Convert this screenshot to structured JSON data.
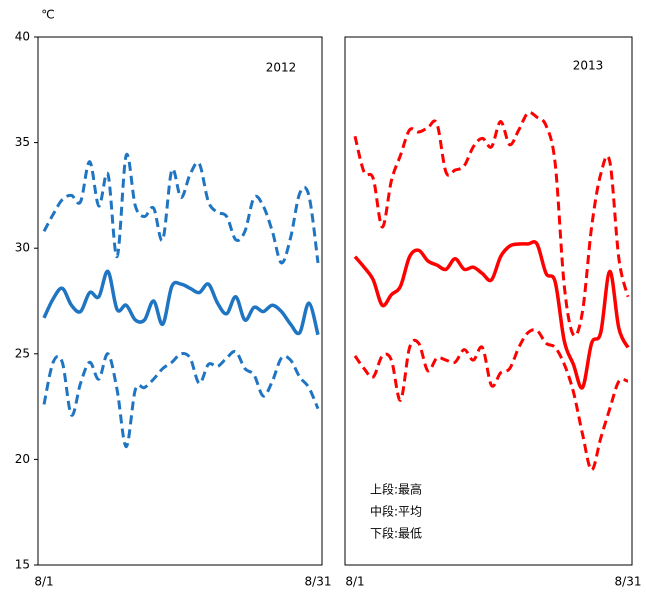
{
  "chart_data": [
    {
      "type": "line",
      "title": "2012",
      "y_label": "℃",
      "categories": [
        "8/1",
        null,
        null,
        null,
        null,
        null,
        null,
        null,
        null,
        null,
        null,
        null,
        null,
        null,
        null,
        null,
        null,
        null,
        null,
        null,
        null,
        null,
        null,
        null,
        null,
        null,
        null,
        null,
        null,
        null,
        "8/31"
      ],
      "ylim": [
        15,
        40
      ],
      "yticks": [
        15,
        20,
        25,
        30,
        35,
        40
      ],
      "series": [
        {
          "color": "#1f75c2",
          "dashed": true,
          "values": [
            30.8,
            31.6,
            32.3,
            32.5,
            32.2,
            34.1,
            32.0,
            33.5,
            29.6,
            34.4,
            32.0,
            31.5,
            31.9,
            30.4,
            33.7,
            32.4,
            33.5,
            34.0,
            32.2,
            31.7,
            31.5,
            30.4,
            30.8,
            32.4,
            32.0,
            30.8,
            29.3,
            30.5,
            32.6,
            32.5,
            29.3
          ]
        },
        {
          "color": "#1f75c2",
          "dashed": false,
          "values": [
            26.7,
            27.6,
            28.1,
            27.3,
            27.0,
            27.9,
            27.7,
            28.9,
            27.1,
            27.3,
            26.6,
            26.6,
            27.5,
            26.4,
            28.2,
            28.3,
            28.1,
            27.9,
            28.3,
            27.4,
            26.9,
            27.7,
            26.6,
            27.2,
            27.0,
            27.3,
            27.0,
            26.4,
            26.0,
            27.4,
            25.9
          ]
        },
        {
          "color": "#1f75c2",
          "dashed": true,
          "values": [
            22.6,
            24.6,
            24.6,
            22.1,
            23.6,
            24.6,
            23.8,
            25.0,
            23.3,
            20.6,
            23.3,
            23.4,
            23.8,
            24.3,
            24.6,
            25.0,
            24.8,
            23.6,
            24.5,
            24.4,
            24.8,
            25.1,
            24.3,
            24.0,
            23.0,
            23.7,
            24.8,
            24.7,
            23.9,
            23.4,
            22.4
          ]
        }
      ]
    },
    {
      "type": "line",
      "title": "2013",
      "annotations": [
        "上段:最高",
        "中段:平均",
        "下段:最低"
      ],
      "categories": [
        "8/1",
        null,
        null,
        null,
        null,
        null,
        null,
        null,
        null,
        null,
        null,
        null,
        null,
        null,
        null,
        null,
        null,
        null,
        null,
        null,
        null,
        null,
        null,
        null,
        null,
        null,
        null,
        null,
        null,
        null,
        "8/31"
      ],
      "ylim": [
        15,
        40
      ],
      "series": [
        {
          "color": "#ff0000",
          "dashed": true,
          "values": [
            35.3,
            33.6,
            33.3,
            31.0,
            33.2,
            34.4,
            35.6,
            35.5,
            35.7,
            35.9,
            33.6,
            33.7,
            33.9,
            34.8,
            35.2,
            34.8,
            36.0,
            34.9,
            35.6,
            36.4,
            36.2,
            35.8,
            34.0,
            28.2,
            25.9,
            27.0,
            31.0,
            33.5,
            34.1,
            29.5,
            27.7
          ]
        },
        {
          "color": "#ff0000",
          "dashed": false,
          "values": [
            29.6,
            29.1,
            28.5,
            27.3,
            27.8,
            28.2,
            29.6,
            29.9,
            29.4,
            29.2,
            29.0,
            29.5,
            29.0,
            29.1,
            28.8,
            28.5,
            29.6,
            30.1,
            30.2,
            30.2,
            30.2,
            28.8,
            28.4,
            25.6,
            24.5,
            23.4,
            25.5,
            26.0,
            28.9,
            26.2,
            25.3
          ]
        },
        {
          "color": "#ff0000",
          "dashed": true,
          "values": [
            24.9,
            24.3,
            23.9,
            24.9,
            24.7,
            22.8,
            25.3,
            25.5,
            24.2,
            24.8,
            24.7,
            24.6,
            25.2,
            24.7,
            25.3,
            23.5,
            24.1,
            24.3,
            25.3,
            26.0,
            26.1,
            25.5,
            25.3,
            24.5,
            23.2,
            21.2,
            19.5,
            21.0,
            22.4,
            23.7,
            23.7
          ]
        }
      ]
    }
  ]
}
